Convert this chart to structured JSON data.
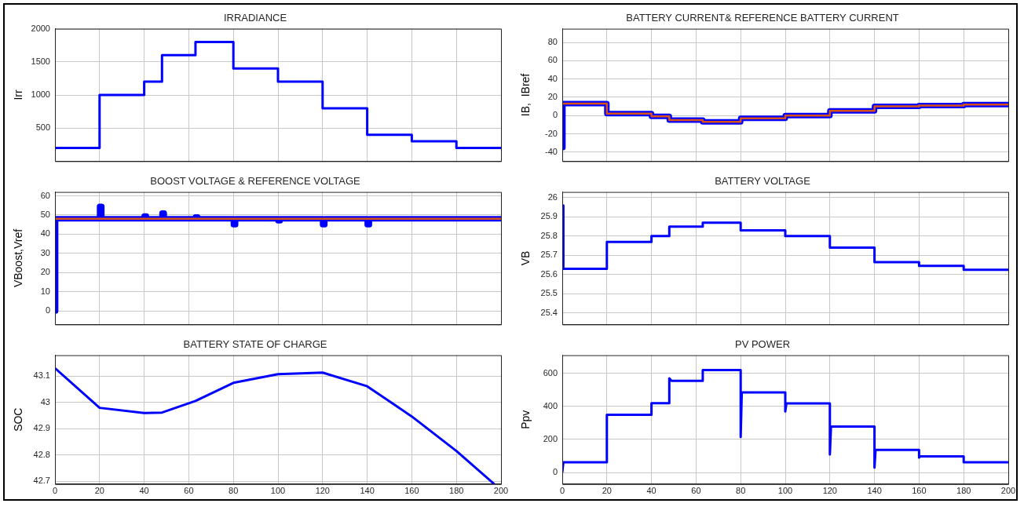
{
  "chart_data": [
    {
      "type": "step",
      "title": "IRRADIANCE",
      "ylabel": "Irr",
      "xlim": [
        0,
        200
      ],
      "xticks": [
        0,
        20,
        40,
        60,
        80,
        100,
        120,
        140,
        160,
        180,
        200
      ],
      "ylim": [
        0,
        2000
      ],
      "yticks": [
        500,
        1000,
        1500,
        2000
      ],
      "tick_labels": "y",
      "grid": true,
      "legend": false,
      "series": [
        {
          "color": "#0000ff",
          "x": [
            0,
            20,
            40,
            48,
            63,
            80,
            100,
            120,
            140,
            160,
            180,
            200
          ],
          "values": [
            200,
            1000,
            1200,
            1600,
            1800,
            1400,
            1200,
            800,
            400,
            300,
            200,
            200
          ]
        }
      ]
    },
    {
      "type": "line",
      "title": "BATTERY CURRENT& REFERENCE BATTERY CURRENT",
      "ylabel": "IB,  IBref",
      "xlim": [
        0,
        200
      ],
      "xticks": [
        0,
        20,
        40,
        60,
        80,
        100,
        120,
        140,
        160,
        180,
        200
      ],
      "ylim": [
        -50,
        95
      ],
      "yticks": [
        -40,
        -20,
        0,
        20,
        40,
        60,
        80
      ],
      "tick_labels": "y",
      "grid": true,
      "legend": false,
      "series": [
        {
          "color": "#0000ff",
          "x": [
            0,
            0.3,
            20,
            20,
            40,
            40,
            48,
            48,
            63,
            63,
            80,
            80,
            100,
            100,
            120,
            120,
            140,
            140,
            160,
            160,
            180,
            180,
            200
          ],
          "values": [
            -35,
            13,
            13,
            2,
            2,
            -1,
            -1,
            -5,
            -5,
            -7,
            -7,
            -3,
            -3,
            0,
            0,
            5,
            5,
            10,
            10,
            11,
            11,
            12,
            12
          ]
        },
        {
          "type": "step",
          "color": "#d95319",
          "x": [
            0,
            20,
            40,
            48,
            63,
            80,
            100,
            120,
            140,
            160,
            180,
            200
          ],
          "values": [
            13,
            2,
            -1,
            -5,
            -7,
            -3,
            0,
            5,
            10,
            11,
            12,
            12
          ]
        }
      ]
    },
    {
      "type": "line",
      "title": "BOOST VOLTAGE & REFERENCE VOLTAGE",
      "ylabel": "VBoost,Vref",
      "xlim": [
        0,
        200
      ],
      "xticks": [
        0,
        20,
        40,
        60,
        80,
        100,
        120,
        140,
        160,
        180,
        200
      ],
      "ylim": [
        -7,
        62
      ],
      "yticks": [
        0,
        10,
        20,
        30,
        40,
        50,
        60
      ],
      "tick_labels": "y",
      "grid": true,
      "legend": false,
      "series": [
        {
          "color": "#0000ff",
          "x": [
            0,
            0.3,
            20,
            20,
            21,
            21,
            40,
            40,
            41,
            41,
            48,
            48,
            49,
            49,
            63,
            63,
            64,
            64,
            80,
            80,
            81,
            81,
            100,
            100,
            101,
            101,
            120,
            120,
            121,
            121,
            140,
            140,
            141,
            141,
            200
          ],
          "values": [
            0,
            48,
            48,
            54.5,
            54.5,
            48,
            48,
            49.5,
            49.5,
            48,
            48,
            51,
            51,
            48,
            48,
            49,
            49,
            48,
            48,
            45,
            45,
            48,
            48,
            47,
            47,
            48,
            48,
            45,
            45,
            48,
            48,
            45,
            45,
            48,
            48
          ]
        },
        {
          "color": "#d95319",
          "x": [
            0,
            200
          ],
          "values": [
            48,
            48
          ]
        }
      ]
    },
    {
      "type": "step",
      "title": "BATTERY VOLTAGE",
      "ylabel": "VB",
      "xlim": [
        0,
        200
      ],
      "xticks": [
        0,
        20,
        40,
        60,
        80,
        100,
        120,
        140,
        160,
        180,
        200
      ],
      "ylim": [
        25.34,
        26.03
      ],
      "yticks": [
        25.4,
        25.5,
        25.6,
        25.7,
        25.8,
        25.9,
        26
      ],
      "tick_labels": "y",
      "grid": true,
      "legend": false,
      "series": [
        {
          "color": "#0000ff",
          "x": [
            0,
            0.5,
            20,
            40,
            48,
            63,
            80,
            100,
            120,
            140,
            160,
            180,
            200
          ],
          "values": [
            25.96,
            25.63,
            25.77,
            25.8,
            25.85,
            25.87,
            25.83,
            25.8,
            25.74,
            25.665,
            25.645,
            25.625,
            25.625
          ]
        }
      ]
    },
    {
      "type": "line",
      "title": "BATTERY STATE OF CHARGE",
      "ylabel": "SOC",
      "xlim": [
        0,
        200
      ],
      "xticks": [
        0,
        20,
        40,
        60,
        80,
        100,
        120,
        140,
        160,
        180,
        200
      ],
      "ylim": [
        42.69,
        43.18
      ],
      "yticks": [
        42.7,
        42.8,
        42.9,
        43,
        43.1
      ],
      "grid": true,
      "legend": false,
      "series": [
        {
          "color": "#0000ff",
          "x": [
            0,
            20,
            40,
            48,
            63,
            80,
            100,
            120,
            140,
            160,
            180,
            197
          ],
          "values": [
            43.131,
            42.98,
            42.96,
            42.962,
            43.006,
            43.075,
            43.108,
            43.114,
            43.062,
            42.947,
            42.816,
            42.69
          ]
        }
      ]
    },
    {
      "type": "line",
      "title": "PV POWER",
      "ylabel": "Ppv",
      "xlim": [
        0,
        200
      ],
      "xticks": [
        0,
        20,
        40,
        60,
        80,
        100,
        120,
        140,
        160,
        180,
        200
      ],
      "ylim": [
        -70,
        710
      ],
      "yticks": [
        0,
        200,
        400,
        600
      ],
      "grid": true,
      "legend": false,
      "series": [
        {
          "color": "#0000ff",
          "x": [
            0,
            0.5,
            20,
            20,
            40,
            40,
            48,
            48,
            49,
            63,
            63,
            80,
            80,
            80.5,
            100,
            100,
            100.5,
            120,
            120,
            120.5,
            140,
            140,
            140.5,
            160,
            160,
            160.5,
            180,
            180,
            200
          ],
          "values": [
            0,
            62,
            62,
            350,
            350,
            420,
            420,
            570,
            555,
            555,
            620,
            620,
            215,
            485,
            485,
            370,
            418,
            418,
            110,
            278,
            278,
            30,
            137,
            137,
            90,
            98,
            98,
            62,
            62
          ]
        }
      ]
    }
  ]
}
